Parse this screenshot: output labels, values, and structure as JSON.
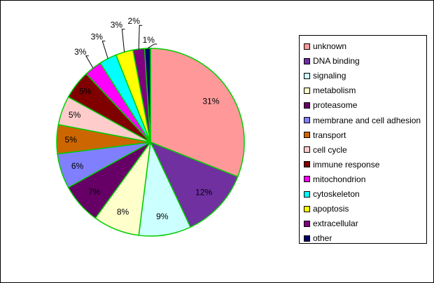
{
  "chart_data": {
    "type": "pie",
    "title": "",
    "slices": [
      {
        "label": "unknown",
        "value": 31,
        "display": "31%",
        "color": "#ff9999"
      },
      {
        "label": "DNA binding",
        "value": 12,
        "display": "12%",
        "color": "#7030a0"
      },
      {
        "label": "signaling",
        "value": 9,
        "display": "9%",
        "color": "#ccffff"
      },
      {
        "label": "metabolism",
        "value": 8,
        "display": "8%",
        "color": "#ffffcc"
      },
      {
        "label": "proteasome",
        "value": 7,
        "display": "7%",
        "color": "#660066"
      },
      {
        "label": "membrane and cell adhesion",
        "value": 6,
        "display": "6%",
        "color": "#8080ff"
      },
      {
        "label": "transport",
        "value": 5,
        "display": "5%",
        "color": "#cc6600"
      },
      {
        "label": "cell cycle",
        "value": 5,
        "display": "5%",
        "color": "#ffcccc"
      },
      {
        "label": "immune response",
        "value": 5,
        "display": "5%",
        "color": "#800000"
      },
      {
        "label": "mitochondrion",
        "value": 3,
        "display": "3%",
        "color": "#ff00ff"
      },
      {
        "label": "cytoskeleton",
        "value": 3,
        "display": "3%",
        "color": "#00ffff"
      },
      {
        "label": "apoptosis",
        "value": 3,
        "display": "3%",
        "color": "#ffff00"
      },
      {
        "label": "extracellular",
        "value": 2,
        "display": "2%",
        "color": "#800080"
      },
      {
        "label": "other",
        "value": 1,
        "display": "1%",
        "color": "#000066"
      }
    ],
    "slice_border_color": "#00cc00",
    "legend_position": "right"
  }
}
